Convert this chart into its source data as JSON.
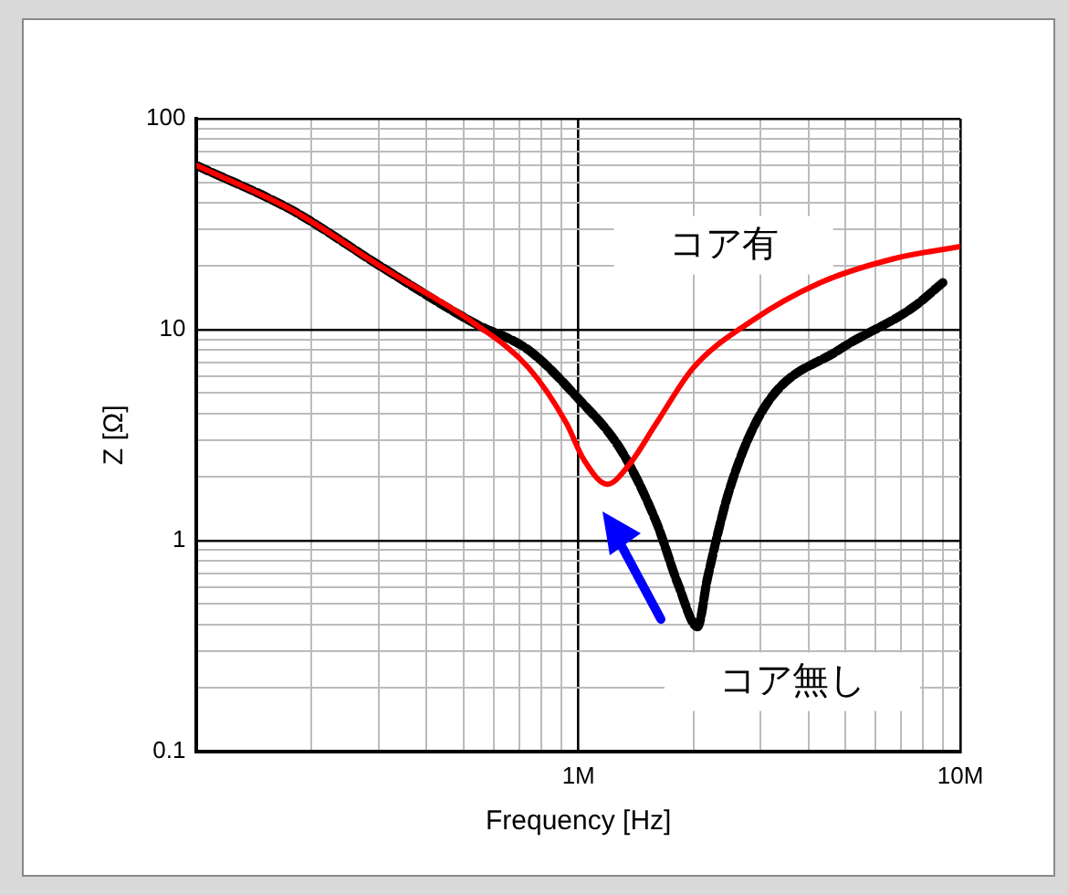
{
  "chart_data": {
    "type": "line",
    "xlabel": "Frequency [Hz]",
    "ylabel": "Z [Ω]",
    "log": "xy",
    "grid": true,
    "legend": false,
    "marker": "none",
    "xlim": [
      100000,
      10000000
    ],
    "xticks": [
      {
        "value": 1000000,
        "label": "1M"
      },
      {
        "value": 10000000,
        "label": "10M"
      }
    ],
    "ylim": [
      0.1,
      100
    ],
    "yticks": [
      0.1,
      1,
      10,
      100
    ],
    "series": [
      {
        "name": "コア有",
        "color": "#ff0000",
        "line_style": "solid",
        "x": [
          100000,
          177000,
          308000,
          530000,
          740000,
          930000,
          1030000,
          1190000,
          1360000,
          1600000,
          2000000,
          2800000,
          4300000,
          6700000,
          10000000
        ],
        "values": [
          60,
          37,
          19.6,
          10.8,
          6.6,
          3.6,
          2.44,
          1.85,
          2.3,
          3.6,
          6.6,
          10.8,
          16.7,
          21.7,
          24.8
        ]
      },
      {
        "name": "コア無し",
        "color": "#000000",
        "line_style": "dashed",
        "x": [
          100000,
          177000,
          308000,
          530000,
          740000,
          1000000,
          1290000,
          1600000,
          1830000,
          2050000,
          2180000,
          2500000,
          3100000,
          4800000,
          7500000,
          9000000
        ],
        "values": [
          60,
          37,
          19.6,
          10.8,
          8,
          4.7,
          2.7,
          1.22,
          0.61,
          0.39,
          0.67,
          1.8,
          4.4,
          8,
          12.7,
          16.7
        ]
      }
    ]
  }
}
